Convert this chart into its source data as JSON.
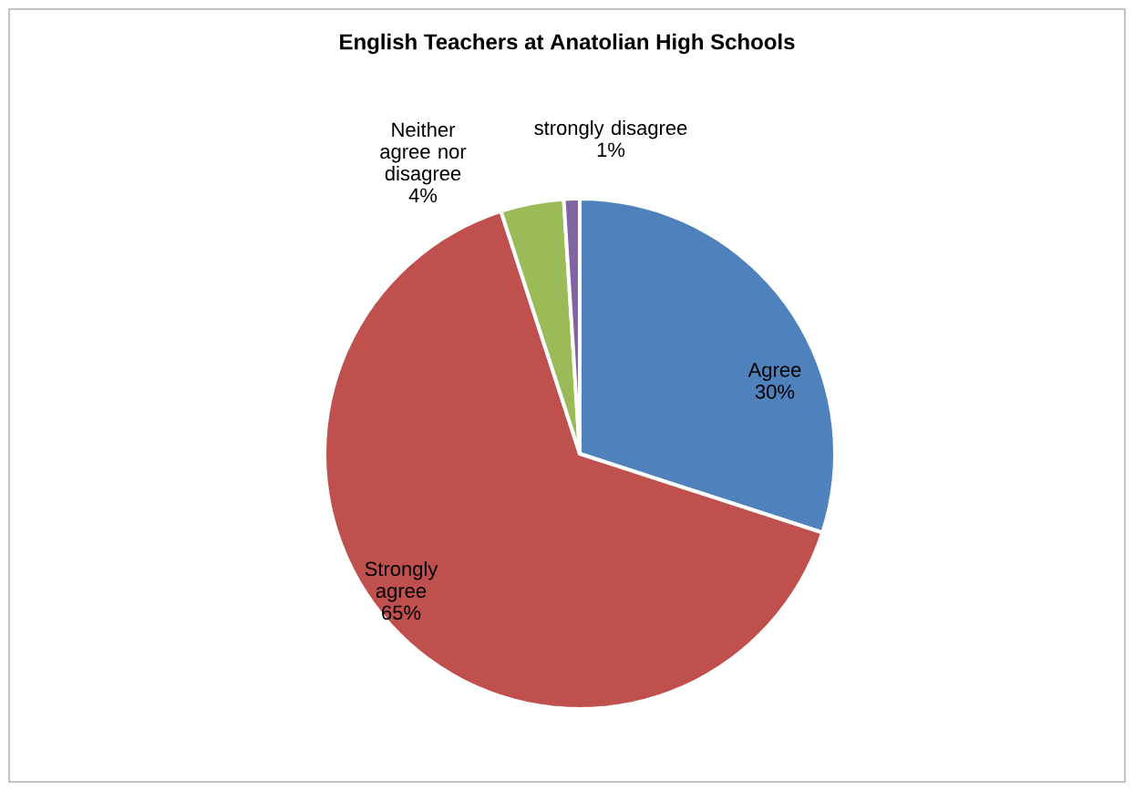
{
  "chart_data": {
    "type": "pie",
    "title": "English Teachers at Anatolian  High Schools",
    "categories": [
      "Agree",
      "Strongly agree",
      "Neither agree nor disagree",
      "strongly disagree"
    ],
    "values": [
      30,
      65,
      4,
      1
    ],
    "value_labels": [
      "30%",
      "65%",
      "4%",
      "1%"
    ],
    "colors": [
      "#4f81bd",
      "#c0504d",
      "#9bbb59",
      "#8064a2"
    ]
  }
}
